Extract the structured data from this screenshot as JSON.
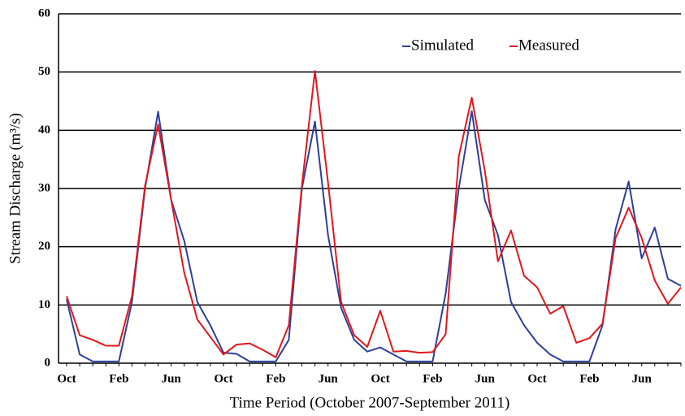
{
  "chart_data": {
    "type": "line",
    "x_label": "Time Period (October 2007-September 2011)",
    "y_label": "Stream Discharge (m³/s)",
    "categories": [
      "Oct",
      null,
      null,
      null,
      "Feb",
      null,
      null,
      null,
      "Jun",
      null,
      null,
      null,
      "Oct",
      null,
      null,
      null,
      "Feb",
      null,
      null,
      null,
      "Jun",
      null,
      null,
      null,
      "Oct",
      null,
      null,
      null,
      "Feb",
      null,
      null,
      null,
      "Jun",
      null,
      null,
      null,
      "Oct",
      null,
      null,
      null,
      "Feb",
      null,
      null,
      null,
      "Jun",
      null,
      null,
      null
    ],
    "series": [
      {
        "name": "Simulated",
        "color": "#2e3f99",
        "values": [
          11,
          1.5,
          0.3,
          0.3,
          0.3,
          10.5,
          30,
          43.2,
          28,
          21,
          10.5,
          6.5,
          1.8,
          1.6,
          0.3,
          0.3,
          0.3,
          4,
          30,
          41.5,
          22,
          9.5,
          4,
          2,
          2.7,
          1.5,
          0.3,
          0.3,
          0.3,
          12,
          30,
          43.3,
          28,
          22,
          10.5,
          6.5,
          3.5,
          1.5,
          0.3,
          0.3,
          0.3,
          6.5,
          23,
          31.2,
          18,
          23.3,
          14.5,
          13.3
        ]
      },
      {
        "name": "Measured",
        "color": "#e3161c",
        "values": [
          11.5,
          4.8,
          4,
          3,
          3,
          11.5,
          30.5,
          41,
          28,
          15.5,
          7.5,
          4.5,
          1.5,
          3.2,
          3.4,
          2.3,
          1,
          6.5,
          30.5,
          50.2,
          31,
          10.5,
          4.8,
          2.8,
          9,
          2,
          2.1,
          1.8,
          1.9,
          5,
          35.5,
          45.6,
          33,
          17.5,
          22.8,
          15,
          13,
          8.5,
          9.8,
          3.5,
          4.3,
          6.8,
          21.5,
          26.7,
          21.5,
          14.2,
          10.2,
          13
        ]
      }
    ],
    "ylim": [
      0,
      60
    ],
    "yticks": [
      0,
      10,
      20,
      30,
      40,
      50,
      60
    ],
    "grid": true,
    "legend": "upper right"
  }
}
